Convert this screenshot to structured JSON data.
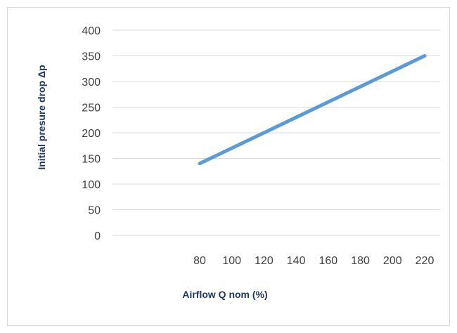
{
  "chart_data": {
    "type": "line",
    "title": "",
    "xlabel": "Airflow Q nom (%)",
    "ylabel": "Initial presure drop Δp",
    "categories": [
      "80",
      "100",
      "120",
      "140",
      "160",
      "180",
      "200",
      "220"
    ],
    "y_ticks": [
      "0",
      "50",
      "100",
      "150",
      "200",
      "250",
      "300",
      "350",
      "400"
    ],
    "ylim": [
      0,
      400
    ],
    "grid": true,
    "legend": "none",
    "series": [
      {
        "color": "#5b9bd5",
        "x": [
          80,
          220
        ],
        "values": [
          140,
          350
        ]
      }
    ]
  }
}
